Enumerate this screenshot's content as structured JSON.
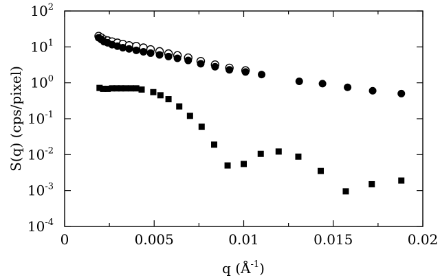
{
  "chart_data": {
    "type": "scatter",
    "xlabel_main": "q (",
    "xlabel_unit": "Å",
    "xlabel_sup": "-1",
    "xlabel_close": ")",
    "ylabel": "S(q) (cps/pixel)",
    "xlim": [
      0,
      0.02
    ],
    "ylim": [
      0.0001,
      100
    ],
    "y_scale": "log",
    "grid": false,
    "x_ticks": [
      {
        "value": 0,
        "label": "0"
      },
      {
        "value": 0.005,
        "label": "0.005"
      },
      {
        "value": 0.01,
        "label": "0.01"
      },
      {
        "value": 0.015,
        "label": "0.015"
      },
      {
        "value": 0.02,
        "label": "0.02"
      }
    ],
    "y_ticks": [
      {
        "exp": 2,
        "base": "10",
        "sup": "2"
      },
      {
        "exp": 1,
        "base": "10",
        "sup": "1"
      },
      {
        "exp": 0,
        "base": "10",
        "sup": "0"
      },
      {
        "exp": -1,
        "base": "10",
        "sup": "-1"
      },
      {
        "exp": -2,
        "base": "10",
        "sup": "-2"
      },
      {
        "exp": -3,
        "base": "10",
        "sup": "-3"
      },
      {
        "exp": -4,
        "base": "10",
        "sup": "-4"
      }
    ],
    "series": [
      {
        "marker": "open-circle",
        "x": [
          0.0019,
          0.00205,
          0.0022,
          0.0024,
          0.00265,
          0.00295,
          0.00325,
          0.0036,
          0.004,
          0.0044,
          0.0048,
          0.0053,
          0.0058,
          0.0063,
          0.0069,
          0.0076,
          0.0084,
          0.0092,
          0.0101
        ],
        "y": [
          20,
          18,
          16,
          15,
          14,
          13,
          12,
          11,
          10.5,
          9.5,
          8.5,
          7.5,
          6.5,
          5.8,
          5.0,
          4.0,
          3.2,
          2.6,
          2.2
        ]
      },
      {
        "marker": "filled-circle",
        "x": [
          0.0019,
          0.00205,
          0.0022,
          0.0024,
          0.00265,
          0.00295,
          0.00325,
          0.0036,
          0.004,
          0.0044,
          0.0048,
          0.0053,
          0.0058,
          0.0063,
          0.0069,
          0.0076,
          0.0084,
          0.0092,
          0.0101,
          0.011,
          0.0131,
          0.0144,
          0.0158,
          0.0172,
          0.0188
        ],
        "y": [
          18,
          16,
          14,
          13,
          11.5,
          10.5,
          9.5,
          8.8,
          8.0,
          7.3,
          6.7,
          6.0,
          5.4,
          4.8,
          4.2,
          3.4,
          2.8,
          2.3,
          2.0,
          1.7,
          1.1,
          0.95,
          0.75,
          0.6,
          0.5
        ]
      },
      {
        "marker": "filled-square",
        "x": [
          0.00195,
          0.00215,
          0.0024,
          0.00265,
          0.0029,
          0.00315,
          0.0034,
          0.0037,
          0.004,
          0.0043,
          0.00495,
          0.00535,
          0.0058,
          0.0064,
          0.007,
          0.00765,
          0.00835,
          0.0091,
          0.01,
          0.01095,
          0.01195,
          0.01305,
          0.0143,
          0.0157,
          0.01715,
          0.0188
        ],
        "y": [
          0.72,
          0.68,
          0.68,
          0.7,
          0.7,
          0.7,
          0.7,
          0.7,
          0.7,
          0.65,
          0.55,
          0.45,
          0.35,
          0.22,
          0.12,
          0.06,
          0.019,
          0.005,
          0.0055,
          0.0105,
          0.0122,
          0.0088,
          0.0035,
          0.00095,
          0.0015,
          0.0019
        ]
      }
    ]
  }
}
